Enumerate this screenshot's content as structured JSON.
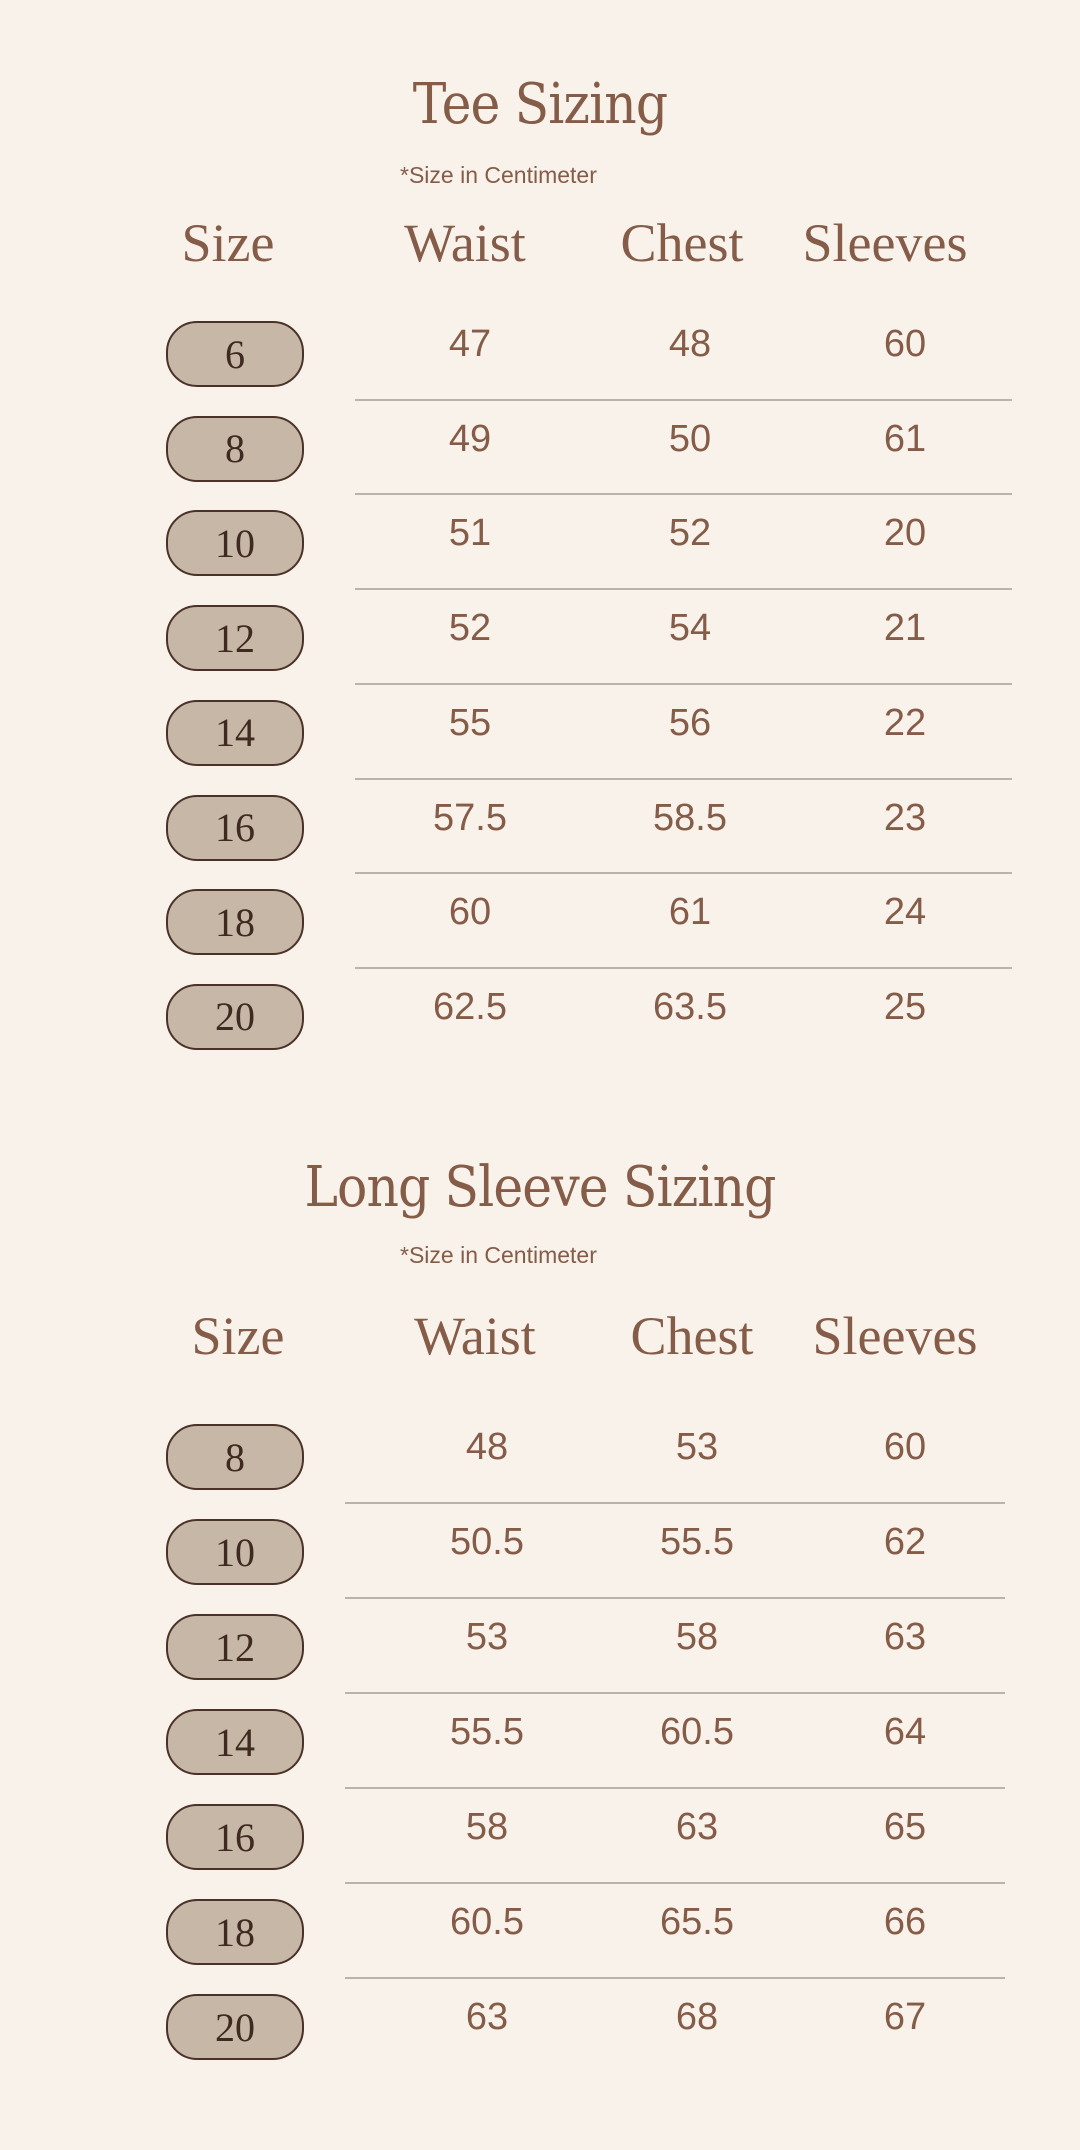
{
  "colors": {
    "background": "#f9f2eb",
    "text": "#845c48",
    "pill": "#c6b7a6",
    "pill_border": "#4a3228",
    "divider": "#bab3ac"
  },
  "tables": [
    {
      "title": "Tee Sizing",
      "subtitle": "*Size in Centimeter",
      "headers": [
        "Size",
        "Waist",
        "Chest",
        "Sleeves"
      ],
      "rows": [
        [
          "6",
          "47",
          "48",
          "60"
        ],
        [
          "8",
          "49",
          "50",
          "61"
        ],
        [
          "10",
          "51",
          "52",
          "20"
        ],
        [
          "12",
          "52",
          "54",
          "21"
        ],
        [
          "14",
          "55",
          "56",
          "22"
        ],
        [
          "16",
          "57.5",
          "58.5",
          "23"
        ],
        [
          "18",
          "60",
          "61",
          "24"
        ],
        [
          "20",
          "62.5",
          "63.5",
          "25"
        ]
      ]
    },
    {
      "title": "Long Sleeve Sizing",
      "subtitle": "*Size in Centimeter",
      "headers": [
        "Size",
        "Waist",
        "Chest",
        "Sleeves"
      ],
      "rows": [
        [
          "8",
          "48",
          "53",
          "60"
        ],
        [
          "10",
          "50.5",
          "55.5",
          "62"
        ],
        [
          "12",
          "53",
          "58",
          "63"
        ],
        [
          "14",
          "55.5",
          "60.5",
          "64"
        ],
        [
          "16",
          "58",
          "63",
          "65"
        ],
        [
          "18",
          "60.5",
          "65.5",
          "66"
        ],
        [
          "20",
          "63",
          "68",
          "67"
        ]
      ]
    }
  ]
}
